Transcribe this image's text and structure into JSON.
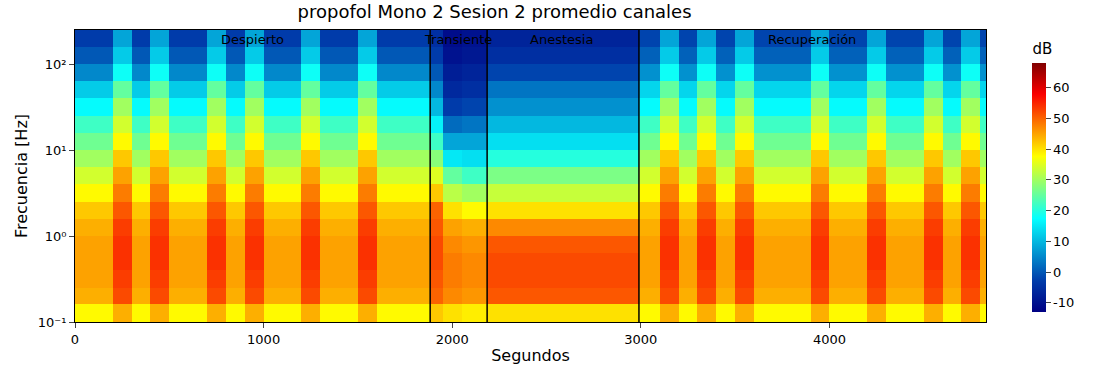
{
  "chart_data": {
    "type": "heatmap",
    "title": "propofol Mono 2 Sesion 2 promedio canales",
    "x_label": "Segundos",
    "y_label": "Frecuencia [Hz]",
    "log": "y",
    "grid": false,
    "color": "Jet",
    "xlim": [
      0,
      4830
    ],
    "ylim": [
      0.1,
      250
    ],
    "xticks": [
      0,
      1000,
      2000,
      3000,
      4000
    ],
    "yticks": [
      {
        "value": 0.1,
        "label": "10⁻¹"
      },
      {
        "value": 1,
        "label": "10⁰"
      },
      {
        "value": 10,
        "label": "10¹"
      },
      {
        "value": 100,
        "label": "10²"
      }
    ],
    "colorbar": {
      "title": "dB",
      "range": [
        -13,
        68
      ],
      "ticks": [
        -10,
        0,
        10,
        20,
        30,
        40,
        50,
        60
      ]
    },
    "boundaries": [
      1883,
      2185,
      2990
    ],
    "segments": [
      {
        "label": "Despierto",
        "x": 940
      },
      {
        "label": "Transiente",
        "x": 2030
      },
      {
        "label": "Anestesia",
        "x": 2580
      },
      {
        "label": "Recuperación",
        "x": 3910
      }
    ],
    "x": [
      0,
      100,
      200,
      300,
      400,
      500,
      600,
      700,
      800,
      900,
      1000,
      1100,
      1200,
      1300,
      1400,
      1500,
      1600,
      1700,
      1800,
      1883,
      1950,
      2050,
      2185,
      2300,
      2400,
      2500,
      2600,
      2700,
      2800,
      2900,
      2990,
      3100,
      3200,
      3300,
      3400,
      3500,
      3600,
      3700,
      3800,
      3900,
      4000,
      4100,
      4200,
      4300,
      4400,
      4500,
      4600,
      4700,
      4800,
      4830
    ],
    "y": [
      0.1,
      0.16,
      0.25,
      0.4,
      0.63,
      1,
      1.6,
      2.5,
      4,
      6.3,
      10,
      16,
      25,
      40,
      63,
      100,
      160,
      250
    ],
    "z": [
      [
        38,
        38,
        44,
        38,
        44,
        38,
        38,
        44,
        38,
        44,
        38,
        38,
        44,
        38,
        38,
        44,
        38,
        38,
        38,
        42,
        40,
        39,
        40,
        40,
        40,
        40,
        40,
        40,
        40,
        40,
        38,
        44,
        38,
        44,
        38,
        44,
        38,
        38,
        38,
        44,
        38,
        38,
        44,
        38,
        38,
        44,
        38,
        44,
        38
      ],
      [
        44,
        44,
        52,
        44,
        52,
        44,
        44,
        52,
        44,
        52,
        44,
        44,
        52,
        44,
        44,
        52,
        44,
        44,
        44,
        50,
        47,
        46,
        51,
        51,
        51,
        51,
        51,
        51,
        51,
        51,
        44,
        52,
        44,
        52,
        44,
        52,
        44,
        44,
        44,
        52,
        44,
        44,
        52,
        44,
        44,
        52,
        44,
        52,
        44
      ],
      [
        45,
        45,
        53,
        45,
        53,
        45,
        45,
        53,
        45,
        53,
        45,
        45,
        53,
        45,
        45,
        53,
        45,
        45,
        45,
        51,
        48,
        47,
        52,
        52,
        52,
        52,
        52,
        52,
        52,
        52,
        45,
        53,
        45,
        53,
        45,
        53,
        45,
        45,
        45,
        53,
        45,
        45,
        53,
        45,
        45,
        53,
        45,
        53,
        45
      ],
      [
        45,
        45,
        54,
        45,
        54,
        45,
        45,
        54,
        45,
        54,
        45,
        45,
        54,
        45,
        45,
        54,
        45,
        45,
        45,
        52,
        48,
        47,
        52,
        52,
        52,
        52,
        52,
        52,
        52,
        52,
        45,
        54,
        45,
        54,
        45,
        54,
        45,
        45,
        45,
        54,
        45,
        45,
        54,
        45,
        45,
        54,
        45,
        54,
        45
      ],
      [
        45,
        45,
        54,
        45,
        54,
        45,
        45,
        54,
        45,
        54,
        45,
        45,
        54,
        45,
        45,
        54,
        45,
        45,
        45,
        52,
        47,
        46,
        51,
        51,
        51,
        51,
        51,
        51,
        51,
        51,
        45,
        54,
        45,
        54,
        45,
        54,
        45,
        45,
        45,
        54,
        45,
        45,
        54,
        45,
        45,
        54,
        45,
        54,
        45
      ],
      [
        44,
        44,
        53,
        44,
        53,
        44,
        44,
        53,
        44,
        53,
        44,
        44,
        53,
        44,
        44,
        53,
        44,
        44,
        44,
        51,
        45,
        44,
        47,
        47,
        47,
        47,
        47,
        47,
        47,
        47,
        44,
        53,
        44,
        53,
        44,
        53,
        44,
        44,
        44,
        53,
        44,
        44,
        53,
        44,
        44,
        53,
        44,
        53,
        44
      ],
      [
        42,
        42,
        51,
        42,
        51,
        42,
        42,
        51,
        42,
        51,
        42,
        42,
        51,
        42,
        42,
        51,
        42,
        42,
        42,
        50,
        40,
        38,
        40,
        40,
        40,
        40,
        40,
        40,
        40,
        40,
        42,
        51,
        42,
        51,
        42,
        51,
        42,
        42,
        42,
        51,
        42,
        42,
        51,
        42,
        42,
        51,
        42,
        51,
        42
      ],
      [
        38,
        38,
        48,
        38,
        48,
        38,
        38,
        48,
        38,
        48,
        38,
        38,
        48,
        38,
        38,
        48,
        38,
        38,
        38,
        42,
        32,
        30,
        33,
        33,
        33,
        33,
        33,
        33,
        33,
        33,
        38,
        48,
        38,
        48,
        38,
        48,
        38,
        38,
        38,
        48,
        38,
        38,
        48,
        38,
        38,
        48,
        38,
        48,
        38
      ],
      [
        34,
        34,
        45,
        34,
        45,
        34,
        34,
        45,
        34,
        45,
        34,
        34,
        45,
        34,
        34,
        45,
        34,
        34,
        34,
        35,
        25,
        22,
        27,
        27,
        27,
        27,
        27,
        27,
        27,
        27,
        34,
        45,
        34,
        45,
        34,
        45,
        34,
        34,
        34,
        45,
        34,
        34,
        45,
        34,
        34,
        45,
        34,
        45,
        34
      ],
      [
        30,
        30,
        42,
        30,
        42,
        30,
        30,
        42,
        30,
        42,
        30,
        30,
        42,
        30,
        30,
        42,
        30,
        30,
        30,
        28,
        15,
        14,
        20,
        20,
        20,
        20,
        20,
        20,
        20,
        20,
        30,
        42,
        30,
        42,
        30,
        42,
        30,
        30,
        30,
        42,
        30,
        30,
        42,
        30,
        30,
        42,
        30,
        42,
        30
      ],
      [
        26,
        26,
        38,
        26,
        38,
        26,
        26,
        38,
        26,
        38,
        26,
        26,
        38,
        26,
        26,
        38,
        26,
        26,
        26,
        22,
        8,
        8,
        14,
        14,
        14,
        14,
        14,
        14,
        14,
        14,
        26,
        38,
        26,
        38,
        26,
        38,
        26,
        26,
        26,
        38,
        26,
        26,
        38,
        26,
        26,
        38,
        26,
        38,
        26
      ],
      [
        22,
        22,
        34,
        22,
        34,
        22,
        22,
        34,
        22,
        34,
        22,
        22,
        34,
        22,
        22,
        34,
        22,
        22,
        22,
        16,
        2,
        3,
        10,
        10,
        10,
        10,
        10,
        10,
        10,
        10,
        22,
        34,
        22,
        34,
        22,
        34,
        22,
        22,
        22,
        34,
        22,
        22,
        34,
        22,
        22,
        34,
        22,
        34,
        22
      ],
      [
        17,
        17,
        30,
        17,
        30,
        17,
        17,
        30,
        17,
        30,
        17,
        17,
        30,
        17,
        17,
        30,
        17,
        17,
        17,
        10,
        -3,
        -2,
        6,
        6,
        6,
        6,
        6,
        6,
        6,
        6,
        17,
        30,
        17,
        30,
        17,
        30,
        17,
        17,
        17,
        30,
        17,
        17,
        30,
        17,
        17,
        30,
        17,
        30,
        17
      ],
      [
        12,
        12,
        25,
        12,
        25,
        12,
        12,
        25,
        12,
        25,
        12,
        12,
        25,
        12,
        12,
        25,
        12,
        12,
        12,
        5,
        -6,
        -5,
        3,
        3,
        3,
        3,
        3,
        3,
        3,
        3,
        13,
        25,
        13,
        25,
        13,
        25,
        13,
        13,
        13,
        25,
        13,
        13,
        25,
        13,
        13,
        25,
        13,
        25,
        13
      ],
      [
        5,
        5,
        18,
        5,
        18,
        5,
        5,
        18,
        5,
        18,
        5,
        5,
        18,
        5,
        5,
        18,
        5,
        5,
        5,
        0,
        -8,
        -7,
        -2,
        -2,
        -2,
        -2,
        -2,
        -2,
        -2,
        -2,
        6,
        18,
        6,
        18,
        6,
        18,
        6,
        6,
        6,
        18,
        6,
        6,
        18,
        6,
        6,
        18,
        6,
        18,
        6
      ],
      [
        0,
        0,
        12,
        0,
        12,
        0,
        0,
        12,
        0,
        12,
        0,
        0,
        12,
        0,
        0,
        12,
        0,
        0,
        0,
        -3,
        -10,
        -9,
        -5,
        -5,
        -5,
        -5,
        -5,
        -5,
        -5,
        -5,
        1,
        12,
        1,
        12,
        1,
        12,
        1,
        1,
        1,
        12,
        1,
        1,
        12,
        1,
        1,
        12,
        1,
        12,
        1
      ],
      [
        -3,
        -3,
        8,
        -3,
        8,
        -3,
        -3,
        8,
        -3,
        8,
        -3,
        -3,
        8,
        -3,
        -3,
        8,
        -3,
        -3,
        -3,
        -5,
        -11,
        -10,
        -7,
        -7,
        -7,
        -7,
        -7,
        -7,
        -7,
        -7,
        -2,
        8,
        -2,
        8,
        -2,
        8,
        -2,
        -2,
        -2,
        8,
        -2,
        -2,
        8,
        -2,
        -2,
        8,
        -2,
        8,
        -2
      ]
    ]
  }
}
